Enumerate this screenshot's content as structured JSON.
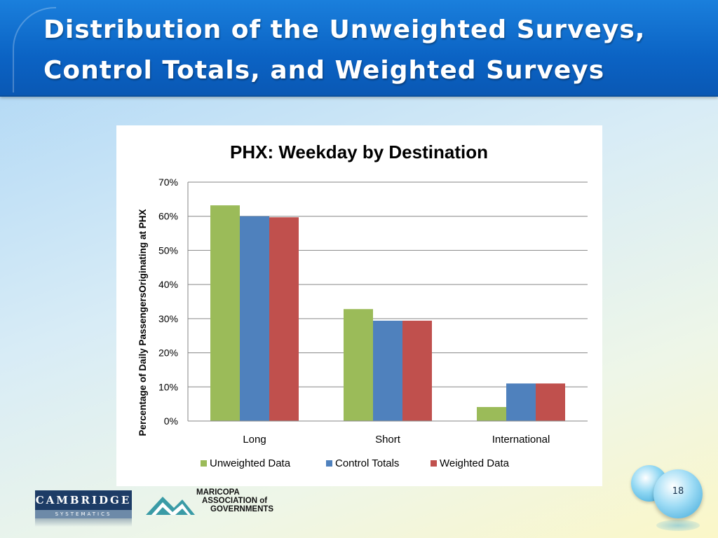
{
  "slide": {
    "title_line1": "Distribution of the Unweighted Surveys,",
    "title_line2": "Control Totals, and Weighted Surveys",
    "page_number": "18"
  },
  "logos": {
    "cambridge_main": "CAMBRIDGE",
    "cambridge_sub": "SYSTEMATICS",
    "mag_line1": "MARICOPA",
    "mag_line2": "ASSOCIATION of",
    "mag_line3": "GOVERNMENTS"
  },
  "colors": {
    "unweighted": "#9bbb59",
    "control": "#4f81bd",
    "weighted": "#c0504d",
    "gridline": "#868686"
  },
  "chart_data": {
    "type": "bar",
    "title": "PHX: Weekday by Destination",
    "ylabel": "Percentage of Daily PassengersOriginating at PHX",
    "xlabel": "",
    "categories": [
      "Long",
      "Short",
      "International"
    ],
    "series": [
      {
        "name": "Unweighted Data",
        "values": [
          63.2,
          32.8,
          4.1
        ]
      },
      {
        "name": "Control Totals",
        "values": [
          60.0,
          29.4,
          11.0
        ]
      },
      {
        "name": "Weighted Data",
        "values": [
          59.7,
          29.4,
          11.0
        ]
      }
    ],
    "ylim": [
      0,
      70
    ],
    "yticks": [
      "0%",
      "10%",
      "20%",
      "30%",
      "40%",
      "50%",
      "60%",
      "70%"
    ],
    "grid": true,
    "legend": "bottom"
  }
}
